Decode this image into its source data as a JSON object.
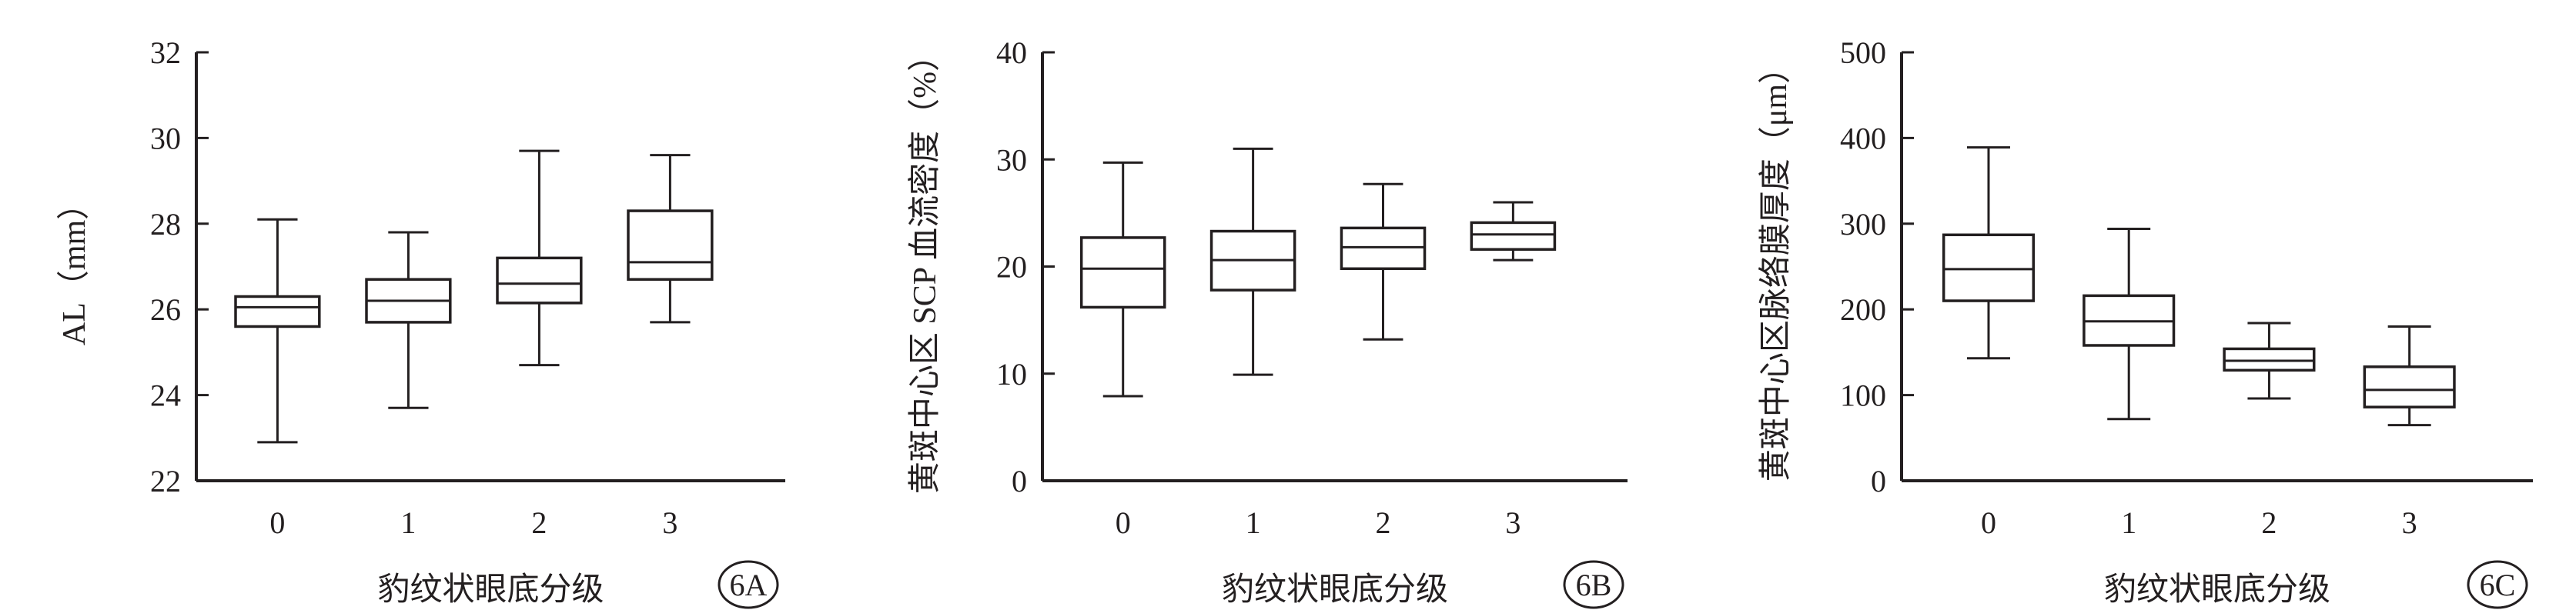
{
  "chart_data": [
    {
      "type": "boxplot",
      "panel_label": "6A",
      "xlabel": "豹纹状眼底分级",
      "ylabel": "AL（mm）",
      "categories": [
        "0",
        "1",
        "2",
        "3"
      ],
      "ylim": [
        22,
        32
      ],
      "yticks": [
        "22",
        "24",
        "26",
        "28",
        "30",
        "32"
      ],
      "boxes": [
        {
          "category": "0",
          "min": 22.9,
          "q1": 25.6,
          "median": 26.05,
          "q3": 26.3,
          "max": 28.1
        },
        {
          "category": "1",
          "min": 23.7,
          "q1": 25.7,
          "median": 26.2,
          "q3": 26.7,
          "max": 27.8
        },
        {
          "category": "2",
          "min": 24.7,
          "q1": 26.15,
          "median": 26.6,
          "q3": 27.2,
          "max": 29.7
        },
        {
          "category": "3",
          "min": 25.7,
          "q1": 26.7,
          "median": 27.1,
          "q3": 28.3,
          "max": 29.6
        }
      ]
    },
    {
      "type": "boxplot",
      "panel_label": "6B",
      "xlabel": "豹纹状眼底分级",
      "ylabel": "黄斑中心区 SCP 血流密度（%）",
      "categories": [
        "0",
        "1",
        "2",
        "3"
      ],
      "ylim": [
        0,
        40
      ],
      "yticks": [
        "0",
        "10",
        "20",
        "30",
        "40"
      ],
      "boxes": [
        {
          "category": "0",
          "min": 7.9,
          "q1": 16.2,
          "median": 19.8,
          "q3": 22.7,
          "max": 29.7
        },
        {
          "category": "1",
          "min": 9.9,
          "q1": 17.8,
          "median": 20.6,
          "q3": 23.3,
          "max": 31.0
        },
        {
          "category": "2",
          "min": 13.2,
          "q1": 19.8,
          "median": 21.8,
          "q3": 23.6,
          "max": 27.7
        },
        {
          "category": "3",
          "min": 20.6,
          "q1": 21.6,
          "median": 23.0,
          "q3": 24.1,
          "max": 26.0
        }
      ]
    },
    {
      "type": "boxplot",
      "panel_label": "6C",
      "xlabel": "豹纹状眼底分级",
      "ylabel": "黄斑中心区脉络膜厚度（μm）",
      "categories": [
        "0",
        "1",
        "2",
        "3"
      ],
      "ylim": [
        0,
        500
      ],
      "yticks": [
        "0",
        "100",
        "200",
        "300",
        "400",
        "500"
      ],
      "boxes": [
        {
          "category": "0",
          "min": 143,
          "q1": 210,
          "median": 247,
          "q3": 287,
          "max": 389
        },
        {
          "category": "1",
          "min": 72,
          "q1": 158,
          "median": 186,
          "q3": 216,
          "max": 294
        },
        {
          "category": "2",
          "min": 96,
          "q1": 129,
          "median": 140,
          "q3": 154,
          "max": 184
        },
        {
          "category": "3",
          "min": 65,
          "q1": 86,
          "median": 106,
          "q3": 133,
          "max": 180
        }
      ]
    }
  ]
}
